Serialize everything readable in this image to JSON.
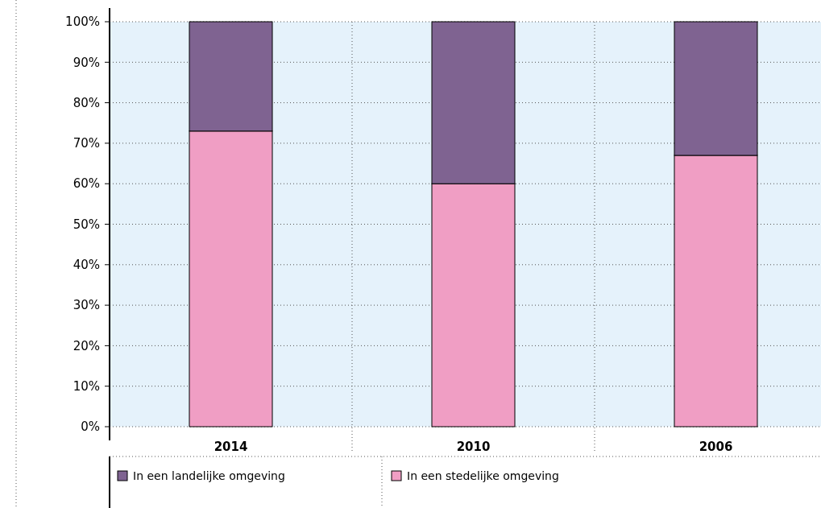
{
  "chart_data": {
    "type": "bar",
    "stacked": true,
    "categories": [
      "2014",
      "2010",
      "2006"
    ],
    "series": [
      {
        "name": "In een stedelijke omgeving",
        "color": "#f09ec4",
        "values": [
          73,
          60,
          67
        ]
      },
      {
        "name": "In een landelijke omgeving",
        "color": "#7f6391",
        "values": [
          27,
          40,
          33
        ]
      }
    ],
    "ylim": [
      0,
      100
    ],
    "yticks": [
      {
        "value": 0,
        "label": "0%"
      },
      {
        "value": 10,
        "label": "10%"
      },
      {
        "value": 20,
        "label": "20%"
      },
      {
        "value": 30,
        "label": "30%"
      },
      {
        "value": 40,
        "label": "40%"
      },
      {
        "value": 50,
        "label": "50%"
      },
      {
        "value": 60,
        "label": "60%"
      },
      {
        "value": 70,
        "label": "70%"
      },
      {
        "value": 80,
        "label": "80%"
      },
      {
        "value": 90,
        "label": "90%"
      },
      {
        "value": 100,
        "label": "100%"
      }
    ],
    "grid": true,
    "legend": "bottom"
  }
}
